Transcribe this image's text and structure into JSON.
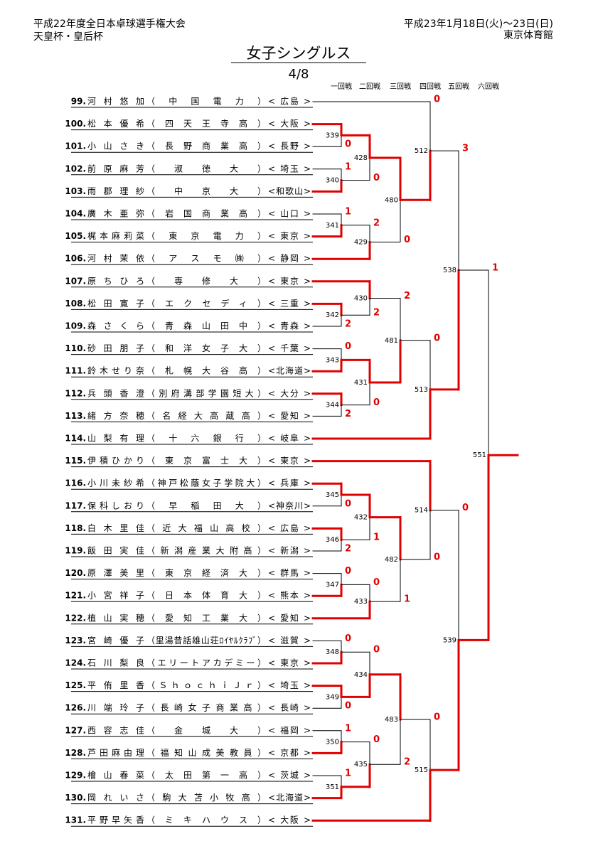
{
  "header": {
    "left": [
      "平成22年度全日本卓球選手権大会",
      "天皇杯・皇后杯"
    ],
    "right": [
      "平成23年1月18日(火)～23日(日)",
      "東京体育館"
    ],
    "title": "女子シングルス",
    "page": "4/8"
  },
  "rounds": [
    "一回戦",
    "二回戦",
    "三回戦",
    "四回戦",
    "五回戦",
    "六回戦"
  ],
  "players": [
    {
      "no": "99.",
      "name": "河村悠加",
      "team": "（中国電力）",
      "pref": "< 広島 >"
    },
    {
      "no": "100.",
      "name": "松本優希",
      "team": "（四天王寺高）",
      "pref": "< 大阪 >"
    },
    {
      "no": "101.",
      "name": "小山さき",
      "team": "（長野商業高）",
      "pref": "< 長野 >"
    },
    {
      "no": "102.",
      "name": "前原麻芳",
      "team": "（淑徳大）",
      "pref": "< 埼玉 >"
    },
    {
      "no": "103.",
      "name": "雨郡理紗",
      "team": "（中京大）",
      "pref": "<和歌山>"
    },
    {
      "no": "104.",
      "name": "廣木亜弥",
      "team": "（岩国商業高）",
      "pref": "< 山口 >"
    },
    {
      "no": "105.",
      "name": "梶本麻莉菜",
      "team": "（東京電力）",
      "pref": "< 東京 >"
    },
    {
      "no": "106.",
      "name": "河村茉依",
      "team": "（アスモ㈱）",
      "pref": "< 静岡 >"
    },
    {
      "no": "107.",
      "name": "原ちひろ",
      "team": "（専修大）",
      "pref": "< 東京 >"
    },
    {
      "no": "108.",
      "name": "松田寛子",
      "team": "（エクセディ）",
      "pref": "< 三重 >"
    },
    {
      "no": "109.",
      "name": "森さくら",
      "team": "（青森山田中）",
      "pref": "< 青森 >"
    },
    {
      "no": "110.",
      "name": "砂田朋子",
      "team": "（和洋女子大）",
      "pref": "< 千葉 >"
    },
    {
      "no": "111.",
      "name": "鈴木せり奈",
      "team": "（札幌大谷高）",
      "pref": "<北海道>"
    },
    {
      "no": "112.",
      "name": "兵頭香澄",
      "team": "（別府溝部学園短大）",
      "pref": "< 大分 >"
    },
    {
      "no": "113.",
      "name": "緒方奈穂",
      "team": "（名経大高蔵高）",
      "pref": "< 愛知 >"
    },
    {
      "no": "114.",
      "name": "山梨有理",
      "team": "（十六銀行）",
      "pref": "< 岐阜 >"
    },
    {
      "no": "115.",
      "name": "伊積ひかり",
      "team": "（東京富士大）",
      "pref": "< 東京 >"
    },
    {
      "no": "116.",
      "name": "小川未紗希",
      "team": "（神戸松蔭女子学院大）",
      "pref": "< 兵庫 >"
    },
    {
      "no": "117.",
      "name": "保科しおり",
      "team": "（早稲田大）",
      "pref": "<神奈川>"
    },
    {
      "no": "118.",
      "name": "白木里佳",
      "team": "（近大福山高校）",
      "pref": "< 広島 >"
    },
    {
      "no": "119.",
      "name": "飯田実佳",
      "team": "（新潟産業大附高）",
      "pref": "< 新潟 >"
    },
    {
      "no": "120.",
      "name": "原澤美里",
      "team": "（東京経済大）",
      "pref": "< 群馬 >"
    },
    {
      "no": "121.",
      "name": "小宮祥子",
      "team": "（日本体育大）",
      "pref": "< 熊本 >"
    },
    {
      "no": "122.",
      "name": "植山実穂",
      "team": "（愛知工業大）",
      "pref": "< 愛知 >"
    },
    {
      "no": "123.",
      "name": "宮崎優子",
      "team": "（里湯昔話雄山荘ﾛｲﾔﾙｸﾗﾌﾞ）",
      "pref": "< 滋賀 >"
    },
    {
      "no": "124.",
      "name": "石川梨良",
      "team": "（エリートアカデミー）",
      "pref": "< 東京 >"
    },
    {
      "no": "125.",
      "name": "平侑里香",
      "team": "（ＳｈｏｃｈｉＪｒ）",
      "pref": "< 埼玉 >"
    },
    {
      "no": "126.",
      "name": "川端玲子",
      "team": "（長崎女子商業高）",
      "pref": "< 長崎 >"
    },
    {
      "no": "127.",
      "name": "西容志佳",
      "team": "（金城大）",
      "pref": "< 福岡 >"
    },
    {
      "no": "128.",
      "name": "芦田麻由理",
      "team": "（福知山成美教員）",
      "pref": "< 京都 >"
    },
    {
      "no": "129.",
      "name": "檜山春菜",
      "team": "（太田第一高）",
      "pref": "< 茨城 >"
    },
    {
      "no": "130.",
      "name": "岡れいさ",
      "team": "（駒大苫小牧高）",
      "pref": "<北海道>"
    },
    {
      "no": "131.",
      "name": "平野早矢香",
      "team": "（ミキハウス）",
      "pref": "< 大阪 >"
    }
  ],
  "bracket": {
    "id": "551",
    "winner": 1,
    "entrants": [
      {
        "score": 1,
        "match": {
          "id": "538",
          "winner": 1,
          "entrants": [
            {
              "score": 3,
              "match": {
                "id": "512",
                "winner": 1,
                "entrants": [
                  {
                    "score": 0,
                    "player": "99."
                  },
                  {
                    "match": {
                      "id": "480",
                      "winner": 0,
                      "entrants": [
                        {
                          "match": {
                            "id": "428",
                            "winner": 0,
                            "entrants": [
                              {
                                "match": {
                                  "id": "339",
                                  "winner": 0,
                                  "entrants": [
                                    {
                                      "player": "100."
                                    },
                                    {
                                      "score": 0,
                                      "player": "101."
                                    }
                                  ]
                                }
                              },
                              {
                                "score": 0,
                                "match": {
                                  "id": "340",
                                  "winner": 1,
                                  "entrants": [
                                    {
                                      "score": 1,
                                      "player": "102."
                                    },
                                    {
                                      "player": "103."
                                    }
                                  ]
                                }
                              }
                            ]
                          }
                        },
                        {
                          "score": 0,
                          "match": {
                            "id": "429",
                            "winner": 1,
                            "entrants": [
                              {
                                "score": 2,
                                "match": {
                                  "id": "341",
                                  "winner": 1,
                                  "entrants": [
                                    {
                                      "score": 1,
                                      "player": "104."
                                    },
                                    {
                                      "player": "105."
                                    }
                                  ]
                                }
                              },
                              {
                                "player": "106."
                              }
                            ]
                          }
                        }
                      ]
                    }
                  }
                ]
              }
            },
            {
              "match": {
                "id": "513",
                "winner": 1,
                "entrants": [
                  {
                    "score": 0,
                    "match": {
                      "id": "481",
                      "winner": 1,
                      "entrants": [
                        {
                          "score": 2,
                          "match": {
                            "id": "430",
                            "winner": 0,
                            "entrants": [
                              {
                                "player": "107."
                              },
                              {
                                "score": 2,
                                "match": {
                                  "id": "342",
                                  "winner": 0,
                                  "entrants": [
                                    {
                                      "player": "108."
                                    },
                                    {
                                      "score": 2,
                                      "player": "109."
                                    }
                                  ]
                                }
                              }
                            ]
                          }
                        },
                        {
                          "match": {
                            "id": "431",
                            "winner": 0,
                            "entrants": [
                              {
                                "match": {
                                  "id": "343",
                                  "winner": 1,
                                  "entrants": [
                                    {
                                      "score": 0,
                                      "player": "110."
                                    },
                                    {
                                      "player": "111."
                                    }
                                  ]
                                }
                              },
                              {
                                "score": 0,
                                "match": {
                                  "id": "344",
                                  "winner": 0,
                                  "entrants": [
                                    {
                                      "player": "112."
                                    },
                                    {
                                      "score": 2,
                                      "player": "113."
                                    }
                                  ]
                                }
                              }
                            ]
                          }
                        }
                      ]
                    }
                  },
                  {
                    "player": "114."
                  }
                ]
              }
            }
          ]
        }
      },
      {
        "match": {
          "id": "539",
          "winner": 1,
          "entrants": [
            {
              "score": 0,
              "match": {
                "id": "514",
                "winner": 0,
                "entrants": [
                  {
                    "player": "115."
                  },
                  {
                    "score": 0,
                    "match": {
                      "id": "482",
                      "winner": 0,
                      "entrants": [
                        {
                          "match": {
                            "id": "432",
                            "winner": 0,
                            "entrants": [
                              {
                                "match": {
                                  "id": "345",
                                  "winner": 0,
                                  "entrants": [
                                    {
                                      "player": "116."
                                    },
                                    {
                                      "score": 0,
                                      "player": "117."
                                    }
                                  ]
                                }
                              },
                              {
                                "score": 1,
                                "match": {
                                  "id": "346",
                                  "winner": 0,
                                  "entrants": [
                                    {
                                      "player": "118."
                                    },
                                    {
                                      "score": 2,
                                      "player": "119."
                                    }
                                  ]
                                }
                              }
                            ]
                          }
                        },
                        {
                          "score": 1,
                          "match": {
                            "id": "433",
                            "winner": 1,
                            "entrants": [
                              {
                                "score": 0,
                                "match": {
                                  "id": "347",
                                  "winner": 1,
                                  "entrants": [
                                    {
                                      "score": 0,
                                      "player": "120."
                                    },
                                    {
                                      "player": "121."
                                    }
                                  ]
                                }
                              },
                              {
                                "player": "122."
                              }
                            ]
                          }
                        }
                      ]
                    }
                  }
                ]
              }
            },
            {
              "match": {
                "id": "515",
                "winner": 1,
                "entrants": [
                  {
                    "score": 0,
                    "match": {
                      "id": "483",
                      "winner": 0,
                      "entrants": [
                        {
                          "match": {
                            "id": "434",
                            "winner": 1,
                            "entrants": [
                              {
                                "score": 0,
                                "match": {
                                  "id": "348",
                                  "winner": 1,
                                  "entrants": [
                                    {
                                      "score": 0,
                                      "player": "123."
                                    },
                                    {
                                      "player": "124."
                                    }
                                  ]
                                }
                              },
                              {
                                "match": {
                                  "id": "349",
                                  "winner": 0,
                                  "entrants": [
                                    {
                                      "player": "125."
                                    },
                                    {
                                      "score": 0,
                                      "player": "126."
                                    }
                                  ]
                                }
                              }
                            ]
                          }
                        },
                        {
                          "score": 2,
                          "match": {
                            "id": "435",
                            "winner": 1,
                            "entrants": [
                              {
                                "score": 0,
                                "match": {
                                  "id": "350",
                                  "winner": 1,
                                  "entrants": [
                                    {
                                      "score": 1,
                                      "player": "127."
                                    },
                                    {
                                      "player": "128."
                                    }
                                  ]
                                }
                              },
                              {
                                "match": {
                                  "id": "351",
                                  "winner": 1,
                                  "entrants": [
                                    {
                                      "score": 1,
                                      "player": "129."
                                    },
                                    {
                                      "player": "130."
                                    }
                                  ]
                                }
                              }
                            ]
                          }
                        }
                      ]
                    }
                  },
                  {
                    "player": "131."
                  }
                ]
              }
            }
          ]
        }
      }
    ]
  }
}
